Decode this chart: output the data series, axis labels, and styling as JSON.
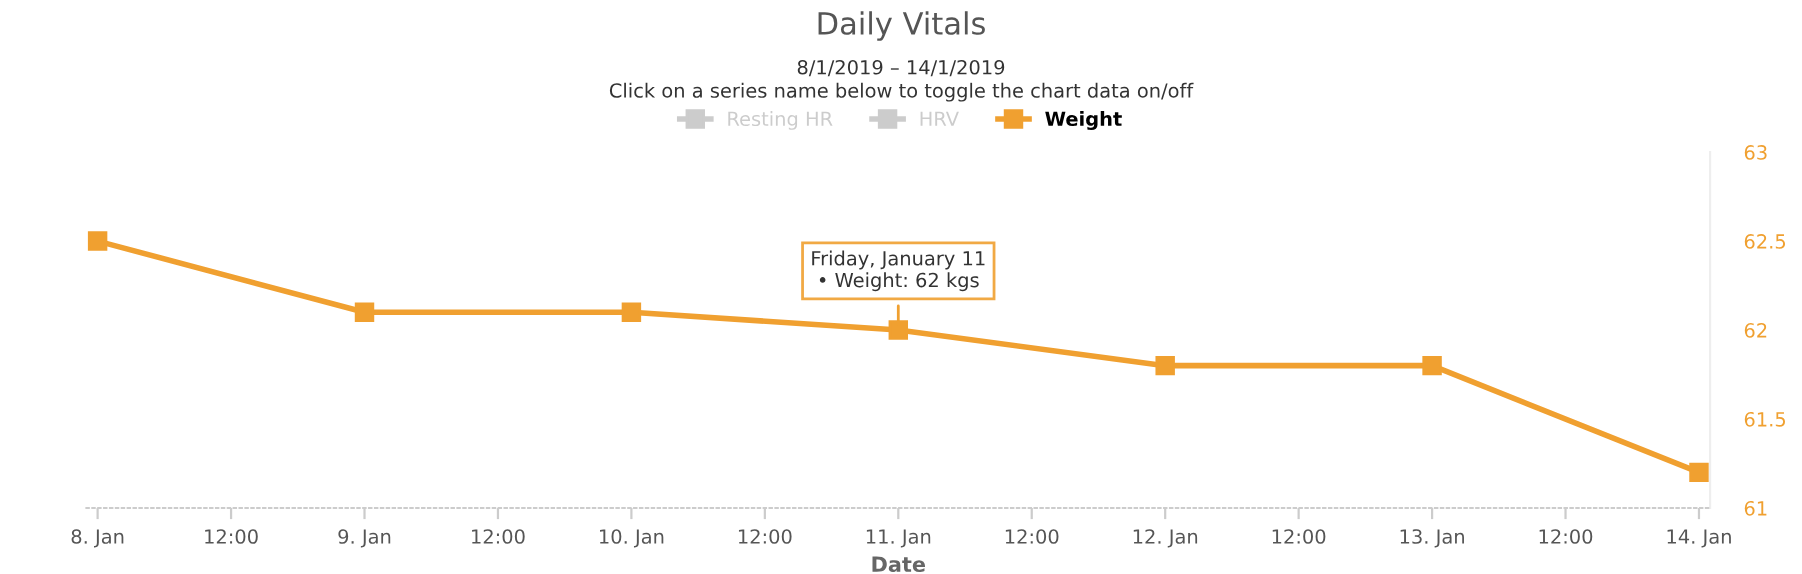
{
  "chart_data": {
    "type": "line",
    "title": "Daily Vitals",
    "subtitle": "8/1/2019 – 14/1/2019\nClick on a series name below to toggle the chart data on/off",
    "xlabel": "Date",
    "x": [
      "2019-01-08",
      "2019-01-09",
      "2019-01-10",
      "2019-01-11",
      "2019-01-12",
      "2019-01-13",
      "2019-01-14"
    ],
    "series": [
      {
        "name": "Resting HR",
        "color": "#cccccc",
        "values": [
          null,
          null,
          null,
          null,
          null,
          null,
          null
        ]
      },
      {
        "name": "HRV",
        "color": "#cccccc",
        "values": [
          null,
          null,
          null,
          null,
          null,
          null,
          null
        ]
      },
      {
        "name": "Weight",
        "color": "#f0a030",
        "values": [
          62.5,
          62.1,
          62.1,
          62.0,
          61.8,
          61.8,
          61.2
        ]
      }
    ],
    "xlim": [
      "2019-01-07T23:00",
      "2019-01-14T01:00"
    ],
    "xticks": [
      {
        "value": "2019-01-08",
        "label": "8. Jan"
      },
      {
        "value": "2019-01-08T12:00",
        "label": "12:00"
      },
      {
        "value": "2019-01-09",
        "label": "9. Jan"
      },
      {
        "value": "2019-01-09T12:00",
        "label": "12:00"
      },
      {
        "value": "2019-01-10",
        "label": "10. Jan"
      },
      {
        "value": "2019-01-10T12:00",
        "label": "12:00"
      },
      {
        "value": "2019-01-11",
        "label": "11. Jan"
      },
      {
        "value": "2019-01-11T12:00",
        "label": "12:00"
      },
      {
        "value": "2019-01-12",
        "label": "12. Jan"
      },
      {
        "value": "2019-01-12T12:00",
        "label": "12:00"
      },
      {
        "value": "2019-01-13",
        "label": "13. Jan"
      },
      {
        "value": "2019-01-13T12:00",
        "label": "12:00"
      },
      {
        "value": "2019-01-14",
        "label": "14. Jan"
      }
    ],
    "ylim": [
      61,
      63
    ],
    "yticks": [
      61,
      61.5,
      62,
      62.5,
      63
    ],
    "annotations": [
      {
        "text": "Friday, January 11\n• Weight: 62 kgs",
        "x": "2019-01-11",
        "y": 62
      }
    ],
    "grid": false,
    "legend": "top",
    "marker": "square",
    "line_style": "solid"
  }
}
